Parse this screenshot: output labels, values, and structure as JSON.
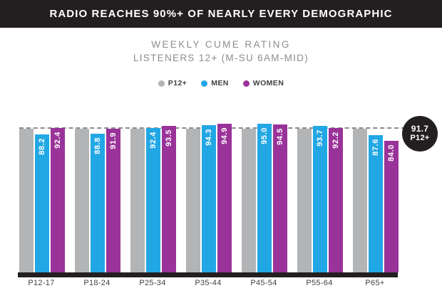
{
  "header": {
    "title": "RADIO REACHES 90%+ OF NEARLY EVERY DEMOGRAPHIC"
  },
  "subtitle": {
    "line1": "WEEKLY CUME RATING",
    "line2": "LISTENERS 12+ (M-SU 6AM-MID)"
  },
  "colors": {
    "header_bg": "#231f20",
    "bar_gray": "#b3b4b6",
    "bar_blue": "#22a7e5",
    "bar_purple": "#9a3399",
    "dash_line": "#8c8c8c",
    "axis_bar": "#231f20",
    "badge_bg": "#231f20",
    "subtitle_text": "#8b8d90",
    "label_text": "#414142"
  },
  "chart_data": {
    "type": "bar",
    "title": "WEEKLY CUME RATING",
    "subtitle": "LISTENERS 12+ (M-SU 6AM-MID)",
    "categories": [
      "P12-17",
      "P18-24",
      "P25-34",
      "P35-44",
      "P45-54",
      "P55-64",
      "P65+"
    ],
    "series": [
      {
        "name": "P12+",
        "color": "#b3b4b6",
        "show_labels": false,
        "values": [
          91.7,
          91.7,
          91.7,
          91.7,
          91.7,
          91.7,
          91.7
        ]
      },
      {
        "name": "MEN",
        "color": "#22a7e5",
        "show_labels": true,
        "values": [
          88.2,
          88.8,
          92.4,
          94.3,
          95.0,
          93.7,
          87.6
        ]
      },
      {
        "name": "WOMEN",
        "color": "#9a3399",
        "show_labels": true,
        "values": [
          92.4,
          91.9,
          93.5,
          94.9,
          94.5,
          92.2,
          84.0
        ]
      }
    ],
    "reference_line": {
      "value": 91.7,
      "label_line1": "91.7",
      "label_line2": "P12+",
      "style": "dashed"
    },
    "xlabel": "",
    "ylabel": "",
    "ylim": [
      0,
      100
    ],
    "grid": false,
    "legend_position": "top"
  }
}
